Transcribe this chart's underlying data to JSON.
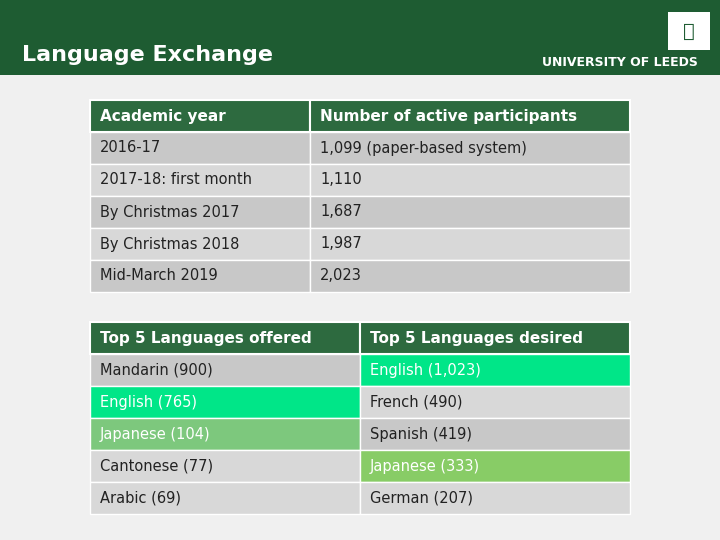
{
  "title": "Language Exchange",
  "header_bg": "#1e5c32",
  "bg_color": "#f0f0f0",
  "table1_header": [
    "Academic year",
    "Number of active participants"
  ],
  "table1_header_bg": "#2d6a3f",
  "table1_rows": [
    [
      "2016-17",
      "1,099 (paper-based system)"
    ],
    [
      "2017-18: first month",
      "1,110"
    ],
    [
      "By Christmas 2017",
      "1,687"
    ],
    [
      "By Christmas 2018",
      "1,987"
    ],
    [
      "Mid-March 2019",
      "2,023"
    ]
  ],
  "table1_row_colors": [
    "#c8c8c8",
    "#d8d8d8",
    "#c8c8c8",
    "#d8d8d8",
    "#c8c8c8"
  ],
  "table2_header": [
    "Top 5 Languages offered",
    "Top 5 Languages desired"
  ],
  "table2_header_bg": "#2d6a3f",
  "table2_rows": [
    [
      "Mandarin (900)",
      "English (1,023)"
    ],
    [
      "English (765)",
      "French (490)"
    ],
    [
      "Japanese (104)",
      "Spanish (419)"
    ],
    [
      "Cantonese (77)",
      "Japanese (333)"
    ],
    [
      "Arabic (69)",
      "German (207)"
    ]
  ],
  "table2_col1_colors": [
    "#c8c8c8",
    "#00dd88",
    "#7dc87d",
    "#d8d8d8",
    "#d8d8d8"
  ],
  "table2_col2_colors": [
    "#00dd88",
    "#d8d8d8",
    "#c8c8c8",
    "#88cc66",
    "#d8d8d8"
  ],
  "university_text": "UNIVERSITY OF LEEDS",
  "dark_green": "#1e5c32",
  "mid_green": "#2d6a3f",
  "bright_green": "#00e688",
  "light_green": "#7dc87d"
}
